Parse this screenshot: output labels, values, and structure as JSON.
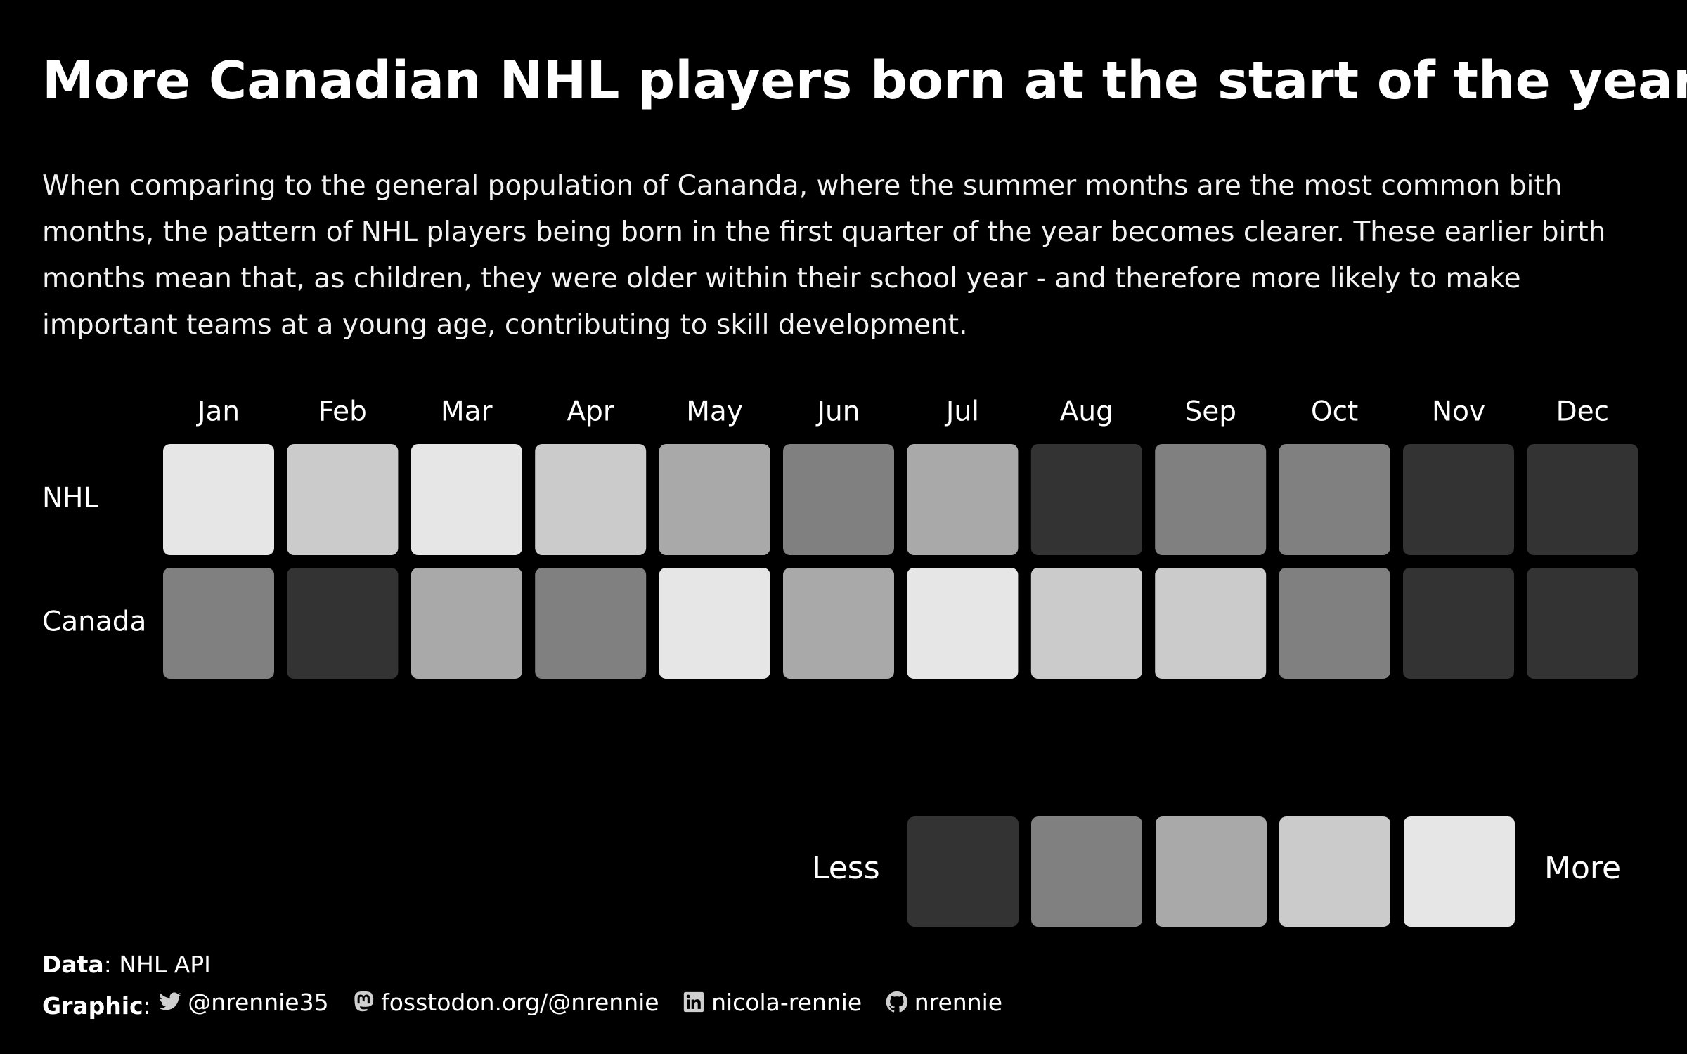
{
  "title": "More Canadian NHL players born at the start of the year",
  "subtitle": "When comparing to the general population of Cananda, where the summer months are the most common bith months, the pattern of NHL players being born in the first quarter of the year becomes clearer. These earlier birth months mean that, as children, they were older within their school year - and therefore more likely to make important teams at a young age, contributing to skill development.",
  "chart_data": {
    "type": "heatmap",
    "categories": [
      "Jan",
      "Feb",
      "Mar",
      "Apr",
      "May",
      "Jun",
      "Jul",
      "Aug",
      "Sep",
      "Oct",
      "Nov",
      "Dec"
    ],
    "series": [
      {
        "name": "NHL",
        "values": [
          5,
          4,
          5,
          4,
          3,
          2,
          3,
          1,
          2,
          2,
          1,
          1
        ]
      },
      {
        "name": "Canada",
        "values": [
          2,
          1,
          3,
          2,
          5,
          3,
          5,
          4,
          4,
          2,
          1,
          1
        ]
      }
    ],
    "scale": {
      "levels": [
        1,
        2,
        3,
        4,
        5
      ],
      "colors": [
        "#333333",
        "#808080",
        "#a9a9a9",
        "#cbcbcb",
        "#e6e6e6"
      ],
      "low_label": "Less",
      "high_label": "More"
    }
  },
  "caption": {
    "data_label": "Data",
    "data_value": ": NHL API",
    "graphic_label": "Graphic",
    "graphic_sep": ":",
    "socials": [
      {
        "icon": "twitter-icon",
        "handle": "@nrennie35"
      },
      {
        "icon": "mastodon-icon",
        "handle": "fosstodon.org/@nrennie"
      },
      {
        "icon": "linkedin-icon",
        "handle": "nicola-rennie"
      },
      {
        "icon": "github-icon",
        "handle": "nrennie"
      }
    ]
  }
}
